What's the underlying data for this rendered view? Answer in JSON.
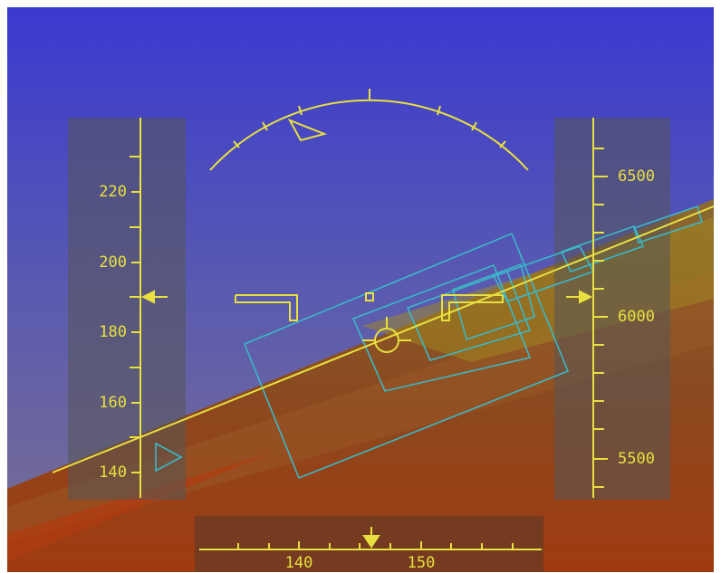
{
  "speed_tape": {
    "labels": [
      "220",
      "200",
      "180",
      "160",
      "140"
    ]
  },
  "altitude_tape": {
    "labels": [
      "6500",
      "6000",
      "5500"
    ]
  },
  "heading_tape": {
    "labels": [
      "140",
      "150"
    ]
  }
}
